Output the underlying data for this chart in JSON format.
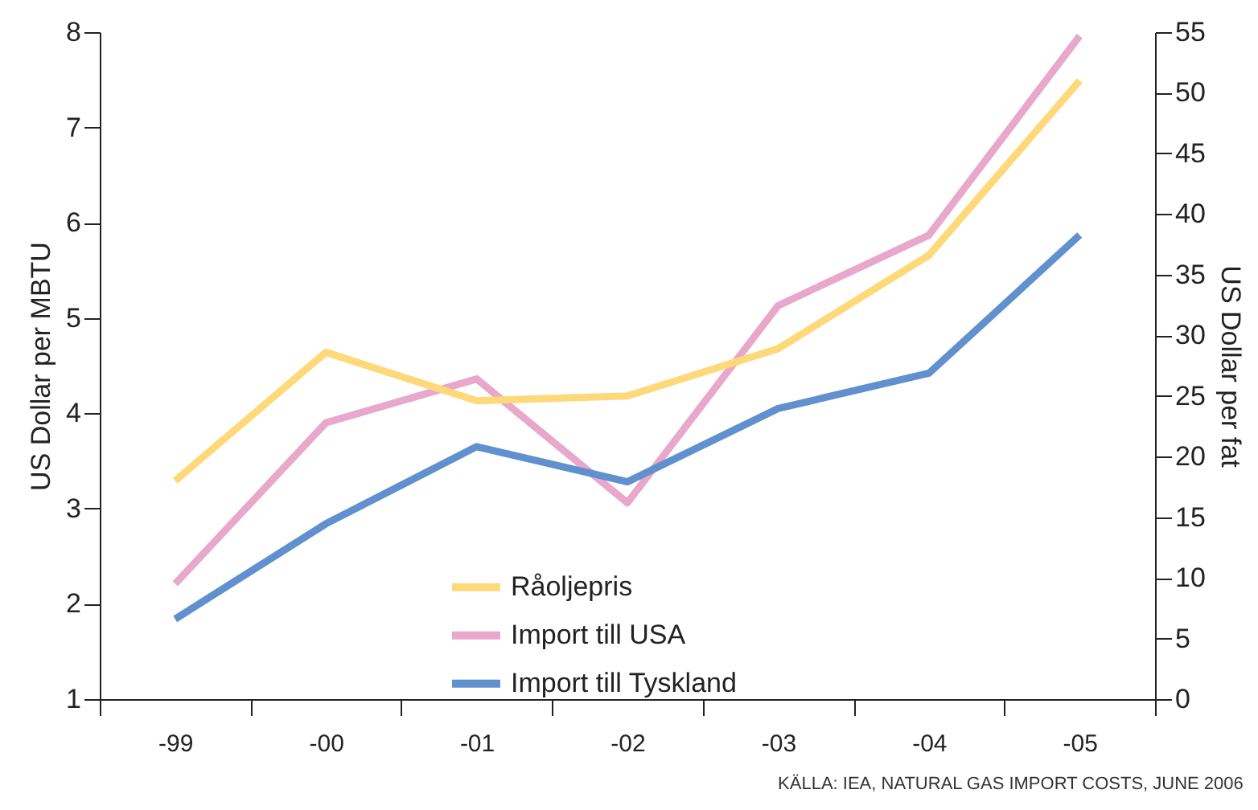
{
  "chart_data": {
    "type": "line",
    "categories": [
      "-99",
      "-00",
      "-01",
      "-02",
      "-03",
      "-04",
      "-05"
    ],
    "ylabel": "US Dollar per MBTU",
    "y2label": "US Dollar per fat",
    "ylim": [
      1,
      8
    ],
    "yticks": [
      1,
      2,
      3,
      4,
      5,
      6,
      7,
      8
    ],
    "y2lim": [
      0,
      55
    ],
    "y2ticks": [
      0,
      5,
      10,
      15,
      20,
      25,
      30,
      35,
      40,
      45,
      50,
      55
    ],
    "series": [
      {
        "name": "Råoljepris",
        "color": "#fdd97a",
        "axis": "y2",
        "values": [
          18.0,
          28.6,
          24.6,
          25.0,
          28.9,
          36.6,
          51.0
        ]
      },
      {
        "name": "Import till USA",
        "color": "#e8a8cb",
        "values": [
          2.21,
          3.9,
          4.36,
          3.06,
          5.13,
          5.87,
          7.96
        ]
      },
      {
        "name": "Import till Tyskland",
        "color": "#6190cf",
        "values": [
          1.84,
          2.84,
          3.65,
          3.28,
          4.05,
          4.42,
          5.87
        ]
      }
    ],
    "legend": "bottom",
    "annotations": [
      "KÄLLA: IEA, NATURAL GAS IMPORT COSTS, JUNE 2006"
    ]
  }
}
